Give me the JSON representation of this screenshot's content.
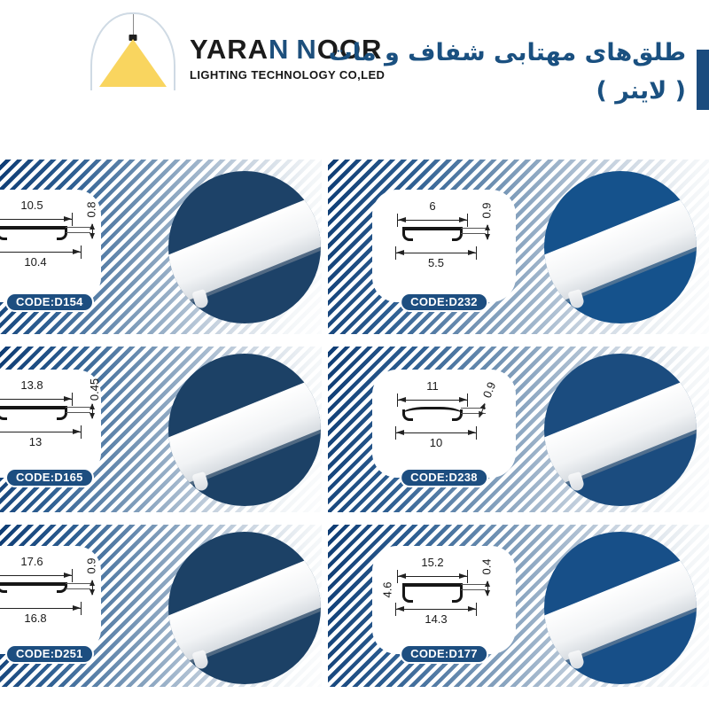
{
  "header": {
    "logo": {
      "part1": "YARA",
      "n1": "N",
      "n2": "N",
      "part2": "OOR",
      "subtitle": "LIGHTING TECHNOLOGY CO,LED"
    },
    "title_line1": "طلق‌های مهتابی شفاف و مات",
    "title_line2": "( لاینر )"
  },
  "colors": {
    "title_blue": "#1a5080",
    "accent_bar": "#1b4c7e",
    "badge_bg": "#1d4e80",
    "stripe_dark": "#0e3c74",
    "logo_yellow": "#f9d55f",
    "logo_blue_letters": "#1d4f7c"
  },
  "cards": [
    {
      "code": "CODE:D154",
      "dim_top": "10.5",
      "dim_bottom": "10.4",
      "dim_height": "0.8",
      "circle_color": "#1d4268"
    },
    {
      "code": "CODE:D232",
      "dim_top": "6",
      "dim_bottom": "5.5",
      "dim_height": "0.9",
      "circle_color": "#15528c"
    },
    {
      "code": "CODE:D165",
      "dim_top": "13.8",
      "dim_bottom": "13",
      "dim_height": "0.45",
      "circle_color": "#1c4166"
    },
    {
      "code": "CODE:D238",
      "dim_top": "11",
      "dim_bottom": "10",
      "dim_height": "0.9",
      "circle_color": "#1b4c7f"
    },
    {
      "code": "CODE:D251",
      "dim_top": "17.6",
      "dim_bottom": "16.8",
      "dim_height": "0.9",
      "circle_color": "#1c4166"
    },
    {
      "code": "CODE:D177",
      "dim_top": "15.2",
      "dim_bottom": "14.3",
      "dim_height": "0.4",
      "dim_side": "4.6",
      "circle_color": "#174f88"
    }
  ]
}
